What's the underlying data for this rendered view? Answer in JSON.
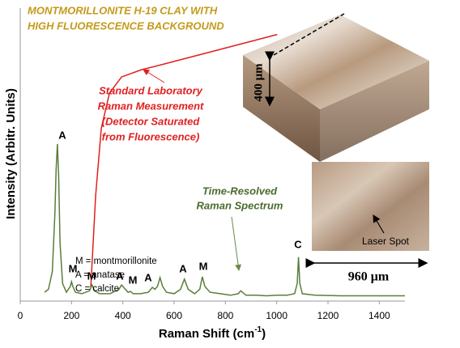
{
  "chart_data": {
    "type": "line",
    "title": [
      "MONTMORILLONITE H-19 CLAY WITH",
      "HIGH FLUORESCENCE BACKGROUND"
    ],
    "x_label": {
      "text": "Raman Shift (cm",
      "sup": "-1",
      "tail": ")"
    },
    "y_label": "Intensity (Arbitr. Units)",
    "xlim": [
      0,
      1500
    ],
    "xticks": [
      0,
      200,
      400,
      600,
      800,
      1000,
      1200,
      1400
    ],
    "ylim": [
      0,
      100
    ],
    "series": [
      {
        "color": "#e02020",
        "x": [
          275,
          294,
          316,
          348,
          395,
          474,
          521,
          1002
        ],
        "values": [
          4.7,
          36,
          59,
          71,
          76.5,
          79,
          80,
          91
        ]
      },
      {
        "color": "#5a7d3a",
        "x": [
          95,
          110,
          125,
          135,
          140,
          145,
          150,
          155,
          165,
          180,
          195,
          200,
          205,
          215,
          240,
          270,
          280,
          290,
          310,
          350,
          385,
          395,
          405,
          420,
          430,
          440,
          470,
          500,
          515,
          525,
          535,
          545,
          555,
          570,
          600,
          625,
          640,
          655,
          680,
          700,
          710,
          720,
          740,
          780,
          820,
          850,
          860,
          880,
          920,
          960,
          1000,
          1040,
          1070,
          1080,
          1085,
          1090,
          1100,
          1150,
          1250,
          1350,
          1450,
          1500
        ],
        "values": [
          3,
          4,
          10,
          30,
          45,
          53.6,
          42,
          20,
          6,
          3,
          5,
          6.6,
          5,
          3,
          2.5,
          3.5,
          5.5,
          3.5,
          2.5,
          2.5,
          4,
          5.5,
          4.5,
          3,
          3.3,
          2.5,
          2.5,
          3,
          4.7,
          4,
          5,
          8,
          5,
          3,
          2.5,
          4,
          7.5,
          4,
          2.5,
          4,
          8.3,
          5,
          3,
          2.5,
          2,
          2.5,
          3.5,
          2,
          2,
          1.8,
          2,
          2,
          2.5,
          6,
          15,
          6,
          2.5,
          2,
          1.8,
          1.8,
          1.8,
          1.8
        ]
      }
    ],
    "peak_labels": [
      "A",
      "M",
      "M",
      "A",
      "M",
      "A",
      "A",
      "M",
      "C"
    ],
    "standard_note": [
      "Standard Laboratory",
      "Raman Measurement",
      "(Detector Saturated",
      "from Fluorescence)"
    ],
    "time_resolved_note": [
      "Time-Resolved",
      "Raman Spectrum"
    ],
    "key": [
      "M = montmorillonite",
      "A = anatase",
      "C = calcite"
    ],
    "height_label": "400 μm",
    "width_label": "960 μm",
    "spot_label": "Laser Spot"
  }
}
